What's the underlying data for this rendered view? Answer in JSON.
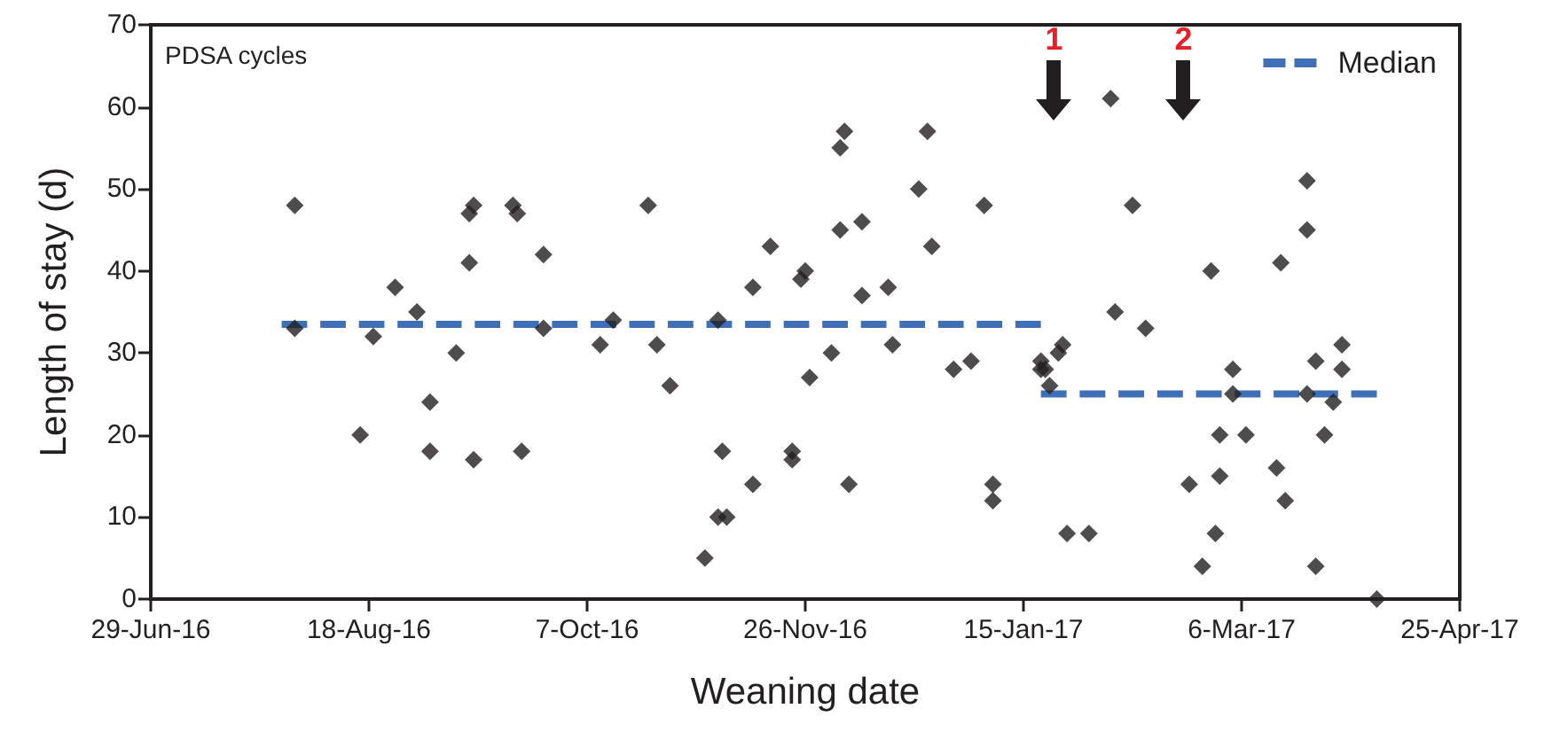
{
  "chart_data": {
    "type": "scatter",
    "xlabel": "Weaning date",
    "ylabel": "Length of stay (d)",
    "annotations": [
      "PDSA cycles",
      "1",
      "2"
    ],
    "xlim": [
      "2016-06-29",
      "2017-04-25"
    ],
    "xticks": [
      {
        "value": "2016-06-29",
        "label": "29-Jun-16"
      },
      {
        "value": "2016-08-18",
        "label": "18-Aug-16"
      },
      {
        "value": "2016-10-07",
        "label": "7-Oct-16"
      },
      {
        "value": "2016-11-26",
        "label": "26-Nov-16"
      },
      {
        "value": "2017-01-15",
        "label": "15-Jan-17"
      },
      {
        "value": "2017-03-06",
        "label": "6-Mar-17"
      },
      {
        "value": "2017-04-25",
        "label": "25-Apr-17"
      }
    ],
    "ylim": [
      0,
      70
    ],
    "yticks": [
      0,
      10,
      20,
      30,
      40,
      50,
      60,
      70
    ],
    "grid": false,
    "legend": "top right",
    "series": [
      {
        "color": "#231f20",
        "marker": "diamond",
        "x": [
          "2016-08-01",
          "2016-08-01",
          "2016-08-16",
          "2016-08-19",
          "2016-08-24",
          "2016-08-29",
          "2016-09-01",
          "2016-09-01",
          "2016-09-07",
          "2016-09-10",
          "2016-09-11",
          "2016-09-10",
          "2016-09-11",
          "2016-09-20",
          "2016-09-21",
          "2016-09-22",
          "2016-09-27",
          "2016-09-27",
          "2016-10-10",
          "2016-10-13",
          "2016-10-21",
          "2016-10-23",
          "2016-10-26",
          "2016-11-03",
          "2016-11-06",
          "2016-11-08",
          "2016-11-06",
          "2016-11-07",
          "2016-11-14",
          "2016-11-14",
          "2016-11-18",
          "2016-11-23",
          "2016-11-23",
          "2016-11-25",
          "2016-11-26",
          "2016-11-27",
          "2016-12-02",
          "2016-12-04",
          "2016-12-04",
          "2016-12-05",
          "2016-12-06",
          "2016-12-09",
          "2016-12-09",
          "2016-12-15",
          "2016-12-16",
          "2016-12-22",
          "2016-12-24",
          "2016-12-25",
          "2016-12-30",
          "2017-01-03",
          "2017-01-08",
          "2017-01-08",
          "2017-01-06",
          "2017-01-19",
          "2017-01-19",
          "2017-01-21",
          "2017-01-20",
          "2017-01-23",
          "2017-01-24",
          "2017-01-25",
          "2017-01-30",
          "2017-02-04",
          "2017-02-05",
          "2017-02-09",
          "2017-02-12",
          "2017-02-22",
          "2017-02-25",
          "2017-02-27",
          "2017-02-28",
          "2017-03-01",
          "2017-03-01",
          "2017-03-04",
          "2017-03-04",
          "2017-03-07",
          "2017-03-14",
          "2017-03-15",
          "2017-03-16",
          "2017-03-21",
          "2017-03-21",
          "2017-03-21",
          "2017-03-23",
          "2017-03-23",
          "2017-03-25",
          "2017-03-27",
          "2017-03-29",
          "2017-03-29",
          "2017-04-06"
        ],
        "values": [
          48,
          33,
          20,
          32,
          38,
          35,
          24,
          18,
          30,
          47,
          48,
          41,
          17,
          48,
          47,
          18,
          42,
          33,
          31,
          34,
          48,
          31,
          26,
          5,
          10,
          10,
          34,
          18,
          14,
          38,
          43,
          18,
          17,
          39,
          40,
          27,
          30,
          45,
          55,
          57,
          14,
          46,
          37,
          38,
          31,
          50,
          57,
          43,
          28,
          29,
          14,
          12,
          48,
          28,
          29,
          26,
          28,
          30,
          31,
          8,
          8,
          61,
          35,
          48,
          33,
          14,
          4,
          40,
          8,
          15,
          20,
          25,
          28,
          20,
          16,
          41,
          12,
          51,
          45,
          25,
          4,
          29,
          20,
          24,
          31,
          28,
          0
        ]
      },
      {
        "type": "line",
        "name": "Median",
        "color": "#3f6fb6",
        "line_style": "dashed",
        "marker": "none",
        "x": [
          "2016-07-29",
          "2017-01-19"
        ],
        "values": [
          33.5,
          33.5
        ]
      },
      {
        "type": "line",
        "color": "#3f6fb6",
        "line_style": "dashed",
        "marker": "none",
        "x": [
          "2017-01-19",
          "2017-04-06"
        ],
        "values": [
          25,
          25
        ]
      }
    ]
  }
}
